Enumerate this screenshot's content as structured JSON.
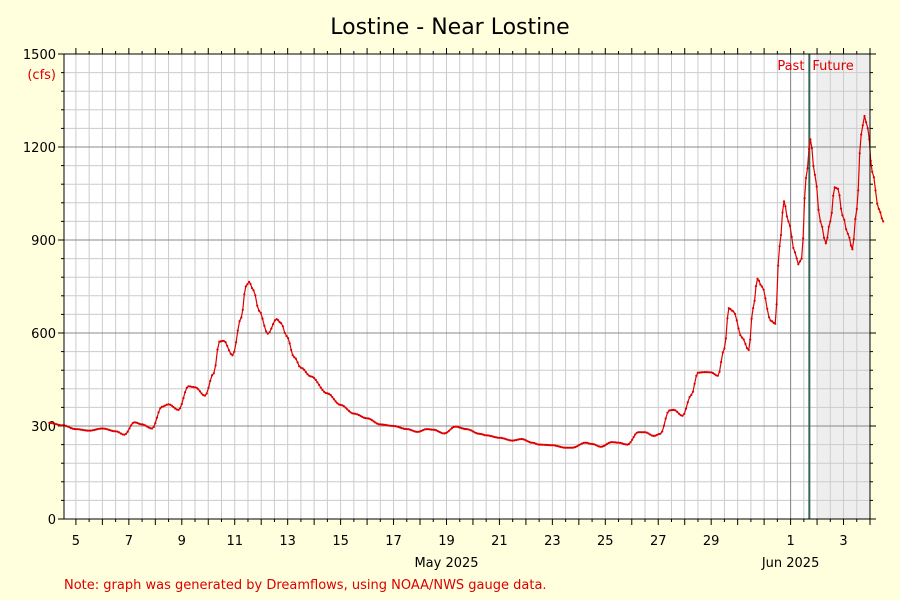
{
  "chart_data": {
    "type": "line",
    "title": "Lostine - Near Lostine",
    "y_unit": "(cfs)",
    "ylim": [
      0,
      1500
    ],
    "y_ticks": [
      0,
      300,
      600,
      900,
      1200,
      1500
    ],
    "x_domain": [
      "2025-05-04",
      "2025-06-04"
    ],
    "x_tick_labels": [
      {
        "date": "2025-05-05",
        "label": "5"
      },
      {
        "date": "2025-05-07",
        "label": "7"
      },
      {
        "date": "2025-05-09",
        "label": "9"
      },
      {
        "date": "2025-05-11",
        "label": "11"
      },
      {
        "date": "2025-05-13",
        "label": "13"
      },
      {
        "date": "2025-05-15",
        "label": "15"
      },
      {
        "date": "2025-05-17",
        "label": "17"
      },
      {
        "date": "2025-05-19",
        "label": "19"
      },
      {
        "date": "2025-05-21",
        "label": "21"
      },
      {
        "date": "2025-05-23",
        "label": "23"
      },
      {
        "date": "2025-05-25",
        "label": "25"
      },
      {
        "date": "2025-05-27",
        "label": "27"
      },
      {
        "date": "2025-05-29",
        "label": "29"
      },
      {
        "date": "2025-06-01",
        "label": "1"
      },
      {
        "date": "2025-06-03",
        "label": "3"
      }
    ],
    "month_labels": [
      {
        "date": "2025-05-19",
        "label": "May 2025"
      },
      {
        "date": "2025-06-01",
        "label": "Jun 2025"
      }
    ],
    "grid": true,
    "now_date": "2025-06-01 17:00",
    "future_start": "2025-06-02",
    "past_label": "Past",
    "future_label": "Future",
    "colors": {
      "line": "#dd0000",
      "grid_major": "#888888",
      "grid_minor": "#cccccc",
      "future_shade": "#eeeeee",
      "now_line": "#336655",
      "background": "#ffffdd",
      "plot_background": "#ffffff"
    },
    "series": [
      {
        "points": [
          [
            "2025-05-04 00:00",
            310
          ],
          [
            "2025-05-04 12:00",
            302
          ],
          [
            "2025-05-05 00:00",
            290
          ],
          [
            "2025-05-05 12:00",
            285
          ],
          [
            "2025-05-06 00:00",
            292
          ],
          [
            "2025-05-06 12:00",
            283
          ],
          [
            "2025-05-06 20:00",
            272
          ],
          [
            "2025-05-07 05:00",
            312
          ],
          [
            "2025-05-07 12:00",
            305
          ],
          [
            "2025-05-07 21:00",
            292
          ],
          [
            "2025-05-08 06:00",
            362
          ],
          [
            "2025-05-08 12:00",
            370
          ],
          [
            "2025-05-08 21:00",
            352
          ],
          [
            "2025-05-09 06:00",
            428
          ],
          [
            "2025-05-09 12:00",
            425
          ],
          [
            "2025-05-09 21:00",
            398
          ],
          [
            "2025-05-10 05:00",
            470
          ],
          [
            "2025-05-10 10:00",
            572
          ],
          [
            "2025-05-10 14:00",
            575
          ],
          [
            "2025-05-10 22:00",
            528
          ],
          [
            "2025-05-11 06:00",
            650
          ],
          [
            "2025-05-11 10:00",
            750
          ],
          [
            "2025-05-11 13:00",
            765
          ],
          [
            "2025-05-11 17:00",
            738
          ],
          [
            "2025-05-11 22:00",
            672
          ],
          [
            "2025-05-12 06:00",
            598
          ],
          [
            "2025-05-12 14:00",
            645
          ],
          [
            "2025-05-12 18:00",
            632
          ],
          [
            "2025-05-12 23:00",
            590
          ],
          [
            "2025-05-13 06:00",
            522
          ],
          [
            "2025-05-13 12:00",
            488
          ],
          [
            "2025-05-13 21:00",
            460
          ],
          [
            "2025-05-14 12:00",
            405
          ],
          [
            "2025-05-15 00:00",
            368
          ],
          [
            "2025-05-15 12:00",
            340
          ],
          [
            "2025-05-16 00:00",
            325
          ],
          [
            "2025-05-16 12:00",
            305
          ],
          [
            "2025-05-17 00:00",
            300
          ],
          [
            "2025-05-17 12:00",
            290
          ],
          [
            "2025-05-17 22:00",
            281
          ],
          [
            "2025-05-18 06:00",
            290
          ],
          [
            "2025-05-18 12:00",
            288
          ],
          [
            "2025-05-18 22:00",
            276
          ],
          [
            "2025-05-19 08:00",
            298
          ],
          [
            "2025-05-19 18:00",
            290
          ],
          [
            "2025-05-20 06:00",
            275
          ],
          [
            "2025-05-20 12:00",
            270
          ],
          [
            "2025-05-21 00:00",
            262
          ],
          [
            "2025-05-21 12:00",
            253
          ],
          [
            "2025-05-21 20:00",
            258
          ],
          [
            "2025-05-22 06:00",
            246
          ],
          [
            "2025-05-22 12:00",
            240
          ],
          [
            "2025-05-23 00:00",
            238
          ],
          [
            "2025-05-23 12:00",
            230
          ],
          [
            "2025-05-23 18:00",
            230
          ],
          [
            "2025-05-24 06:00",
            246
          ],
          [
            "2025-05-24 12:00",
            242
          ],
          [
            "2025-05-24 20:00",
            233
          ],
          [
            "2025-05-25 06:00",
            248
          ],
          [
            "2025-05-25 12:00",
            246
          ],
          [
            "2025-05-25 20:00",
            240
          ],
          [
            "2025-05-26 06:00",
            280
          ],
          [
            "2025-05-26 12:00",
            280
          ],
          [
            "2025-05-26 20:00",
            268
          ],
          [
            "2025-05-27 02:00",
            275
          ],
          [
            "2025-05-27 10:00",
            350
          ],
          [
            "2025-05-27 14:00",
            352
          ],
          [
            "2025-05-27 22:00",
            333
          ],
          [
            "2025-05-28 06:00",
            400
          ],
          [
            "2025-05-28 12:00",
            472
          ],
          [
            "2025-05-28 18:00",
            474
          ],
          [
            "2025-05-29 00:00",
            473
          ],
          [
            "2025-05-29 06:00",
            462
          ],
          [
            "2025-05-29 12:00",
            550
          ],
          [
            "2025-05-29 16:00",
            680
          ],
          [
            "2025-05-29 20:00",
            670
          ],
          [
            "2025-05-30 04:00",
            585
          ],
          [
            "2025-05-30 10:00",
            545
          ],
          [
            "2025-05-30 14:00",
            680
          ],
          [
            "2025-05-30 18:00",
            775
          ],
          [
            "2025-05-30 22:00",
            750
          ],
          [
            "2025-05-31 06:00",
            640
          ],
          [
            "2025-05-31 10:00",
            630
          ],
          [
            "2025-05-31 14:00",
            880
          ],
          [
            "2025-05-31 18:00",
            1025
          ],
          [
            "2025-05-31 22:00",
            960
          ],
          [
            "2025-06-01 04:00",
            860
          ],
          [
            "2025-06-01 07:00",
            822
          ],
          [
            "2025-06-01 10:00",
            840
          ],
          [
            "2025-06-01 14:00",
            1100
          ],
          [
            "2025-06-01 18:00",
            1225
          ],
          [
            "2025-06-01 22:00",
            1110
          ],
          [
            "2025-06-02 03:00",
            960
          ],
          [
            "2025-06-02 08:00",
            890
          ],
          [
            "2025-06-02 12:00",
            960
          ],
          [
            "2025-06-02 16:00",
            1070
          ],
          [
            "2025-06-02 19:00",
            1065
          ],
          [
            "2025-06-02 23:00",
            980
          ],
          [
            "2025-06-03 04:00",
            920
          ],
          [
            "2025-06-03 08:00",
            870
          ],
          [
            "2025-06-03 12:00",
            1000
          ],
          [
            "2025-06-03 16:00",
            1240
          ],
          [
            "2025-06-03 19:00",
            1300
          ],
          [
            "2025-06-03 22:00",
            1260
          ],
          [
            "2025-06-04 02:00",
            1120
          ],
          [
            "2025-06-04 08:00",
            1000
          ],
          [
            "2025-06-04 12:00",
            960
          ]
        ]
      }
    ]
  },
  "footer": {
    "note": "Note: graph was generated by Dreamflows, using NOAA/NWS gauge data."
  }
}
